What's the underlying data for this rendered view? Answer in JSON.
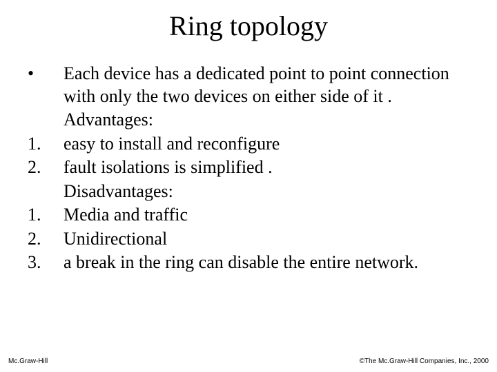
{
  "title": "Ring topology",
  "rows": [
    {
      "marker": "•",
      "text": "Each device has a dedicated point to point connection with only the two devices on either side of it ."
    },
    {
      "marker": "",
      "text": "Advantages:"
    },
    {
      "marker": "1.",
      "text": " easy to install and reconfigure"
    },
    {
      "marker": "2.",
      "text": " fault isolations is simplified ."
    },
    {
      "marker": "",
      "text": "Disadvantages:"
    },
    {
      "marker": "1.",
      "text": "Media and traffic"
    },
    {
      "marker": "2.",
      "text": "Unidirectional"
    },
    {
      "marker": "3.",
      "text": " a break in the ring can disable the entire network."
    }
  ],
  "footer_left": "Mc.Graw-Hill",
  "footer_right": "©The Mc.Graw-Hill Companies, Inc., 2000"
}
